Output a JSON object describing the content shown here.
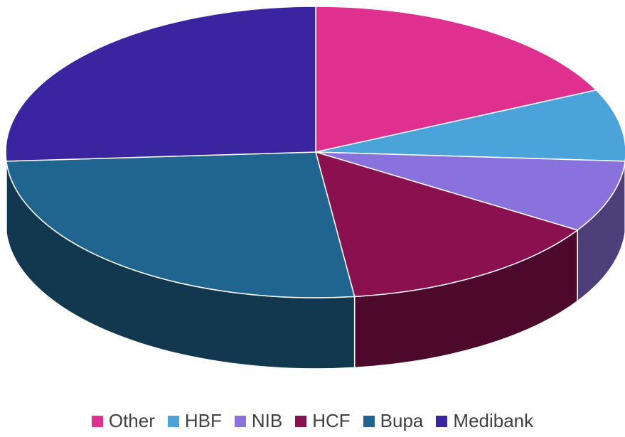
{
  "chart_data": {
    "type": "pie",
    "categories": [
      "Other",
      "HBF",
      "NIB",
      "HCF",
      "Bupa",
      "Medibank"
    ],
    "values": [
      18,
      8,
      8,
      14,
      26,
      26
    ],
    "colors": [
      "#e0308f",
      "#4aa3d9",
      "#8a72de",
      "#8b1050",
      "#1f6590",
      "#3a24a0"
    ],
    "legend": "bottom"
  }
}
